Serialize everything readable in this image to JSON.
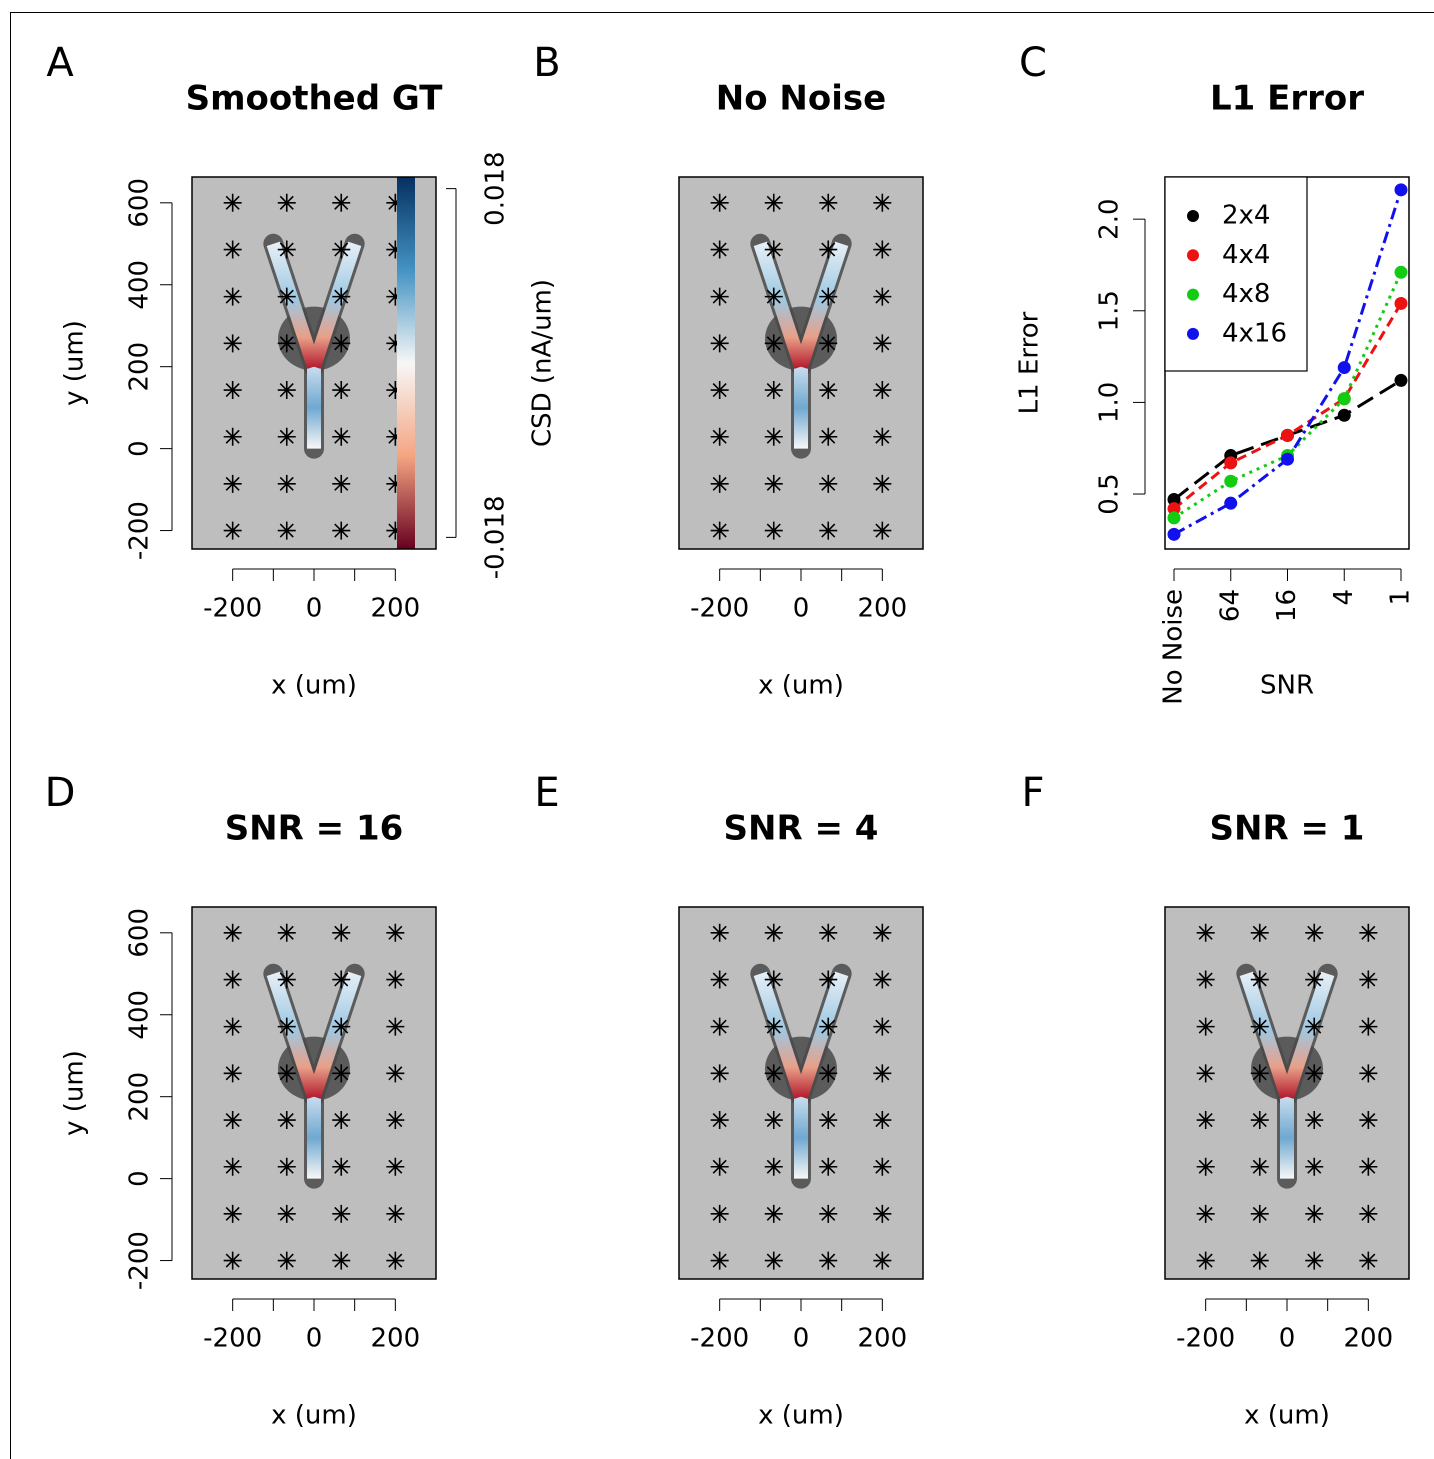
{
  "chart_data": [
    {
      "type": "map",
      "panel": "A",
      "title": "Smoothed GT",
      "xlabel": "x (um)",
      "ylabel": "y (um)",
      "xlim": [
        -300,
        300
      ],
      "ylim": [
        -245,
        663
      ],
      "xticks": [
        -200,
        0,
        200
      ],
      "xminor": [
        -100,
        100
      ],
      "yticks": [
        -200,
        0,
        200,
        400,
        600
      ],
      "electrodes_x": [
        -200,
        -67,
        67,
        200
      ],
      "electrodes_y": [
        600,
        486,
        371,
        257,
        143,
        29,
        -86,
        -200
      ],
      "branches": [
        {
          "x": [
            0,
            0
          ],
          "y": [
            0,
            200
          ]
        },
        {
          "x": [
            0,
            -100
          ],
          "y": [
            200,
            500
          ]
        },
        {
          "x": [
            0,
            100
          ],
          "y": [
            200,
            500
          ]
        }
      ],
      "colorbar": {
        "label": "CSD (nA/um)",
        "lim": [
          -0.0192,
          0.0192
        ],
        "ticks": [
          -0.018,
          0.018
        ]
      }
    },
    {
      "type": "map",
      "panel": "B",
      "title": "No Noise",
      "xlabel": "x (um)",
      "xlim": [
        -300,
        300
      ],
      "ylim": [
        -245,
        663
      ],
      "xticks": [
        -200,
        0,
        200
      ],
      "xminor": [
        -100,
        100
      ],
      "electrodes_x": [
        -200,
        -67,
        67,
        200
      ],
      "electrodes_y": [
        600,
        486,
        371,
        257,
        143,
        29,
        -86,
        -200
      ],
      "branches": [
        {
          "x": [
            0,
            0
          ],
          "y": [
            0,
            200
          ]
        },
        {
          "x": [
            0,
            -100
          ],
          "y": [
            200,
            500
          ]
        },
        {
          "x": [
            0,
            100
          ],
          "y": [
            200,
            500
          ]
        }
      ]
    },
    {
      "type": "line",
      "panel": "C",
      "title": "L1 Error",
      "xlabel": "SNR",
      "ylabel": "L1 Error",
      "categories": [
        "No Noise",
        "64",
        "16",
        "4",
        "1"
      ],
      "ylim": [
        0.2,
        2.23
      ],
      "yticks": [
        0.5,
        {
          "value": 1,
          "label": "1.0"
        },
        1.5,
        {
          "value": 2,
          "label": "2.0"
        }
      ],
      "legend": "top-left",
      "series": [
        {
          "name": "2x4",
          "color": "#000000",
          "dash": "18 8",
          "values": [
            0.47,
            0.71,
            0.82,
            0.93,
            1.12
          ]
        },
        {
          "name": "4x4",
          "color": "#ee1111",
          "dash": "10 6",
          "values": [
            0.42,
            0.67,
            0.82,
            1.02,
            1.54
          ]
        },
        {
          "name": "4x8",
          "color": "#11cc11",
          "dash": "3 5",
          "values": [
            0.37,
            0.57,
            0.71,
            1.02,
            1.71
          ]
        },
        {
          "name": "4x16",
          "color": "#1111ee",
          "dash": "12 5 3 5",
          "values": [
            0.28,
            0.45,
            0.69,
            1.19,
            2.16
          ]
        }
      ]
    },
    {
      "type": "map",
      "panel": "D",
      "title": "SNR = 16",
      "xlabel": "x (um)",
      "ylabel": "y (um)",
      "xlim": [
        -300,
        300
      ],
      "ylim": [
        -245,
        663
      ],
      "xticks": [
        -200,
        0,
        200
      ],
      "xminor": [
        -100,
        100
      ],
      "yticks": [
        -200,
        0,
        200,
        400,
        600
      ],
      "electrodes_x": [
        -200,
        -67,
        67,
        200
      ],
      "electrodes_y": [
        600,
        486,
        371,
        257,
        143,
        29,
        -86,
        -200
      ],
      "branches": [
        {
          "x": [
            0,
            0
          ],
          "y": [
            0,
            200
          ]
        },
        {
          "x": [
            0,
            -100
          ],
          "y": [
            200,
            500
          ]
        },
        {
          "x": [
            0,
            100
          ],
          "y": [
            200,
            500
          ]
        }
      ]
    },
    {
      "type": "map",
      "panel": "E",
      "title": "SNR = 4",
      "xlabel": "x (um)",
      "xlim": [
        -300,
        300
      ],
      "ylim": [
        -245,
        663
      ],
      "xticks": [
        -200,
        0,
        200
      ],
      "xminor": [
        -100,
        100
      ],
      "electrodes_x": [
        -200,
        -67,
        67,
        200
      ],
      "electrodes_y": [
        600,
        486,
        371,
        257,
        143,
        29,
        -86,
        -200
      ],
      "branches": [
        {
          "x": [
            0,
            0
          ],
          "y": [
            0,
            200
          ]
        },
        {
          "x": [
            0,
            -100
          ],
          "y": [
            200,
            500
          ]
        },
        {
          "x": [
            0,
            100
          ],
          "y": [
            200,
            500
          ]
        }
      ]
    },
    {
      "type": "map",
      "panel": "F",
      "title": "SNR = 1",
      "xlabel": "x (um)",
      "xlim": [
        -300,
        300
      ],
      "ylim": [
        -245,
        663
      ],
      "xticks": [
        -200,
        0,
        200
      ],
      "xminor": [
        -100,
        100
      ],
      "electrodes_x": [
        -200,
        -67,
        67,
        200
      ],
      "electrodes_y": [
        600,
        486,
        371,
        257,
        143,
        29,
        -86,
        -200
      ],
      "branches": [
        {
          "x": [
            0,
            0
          ],
          "y": [
            0,
            200
          ]
        },
        {
          "x": [
            0,
            -100
          ],
          "y": [
            200,
            500
          ]
        },
        {
          "x": [
            0,
            100
          ],
          "y": [
            200,
            500
          ]
        }
      ]
    }
  ]
}
